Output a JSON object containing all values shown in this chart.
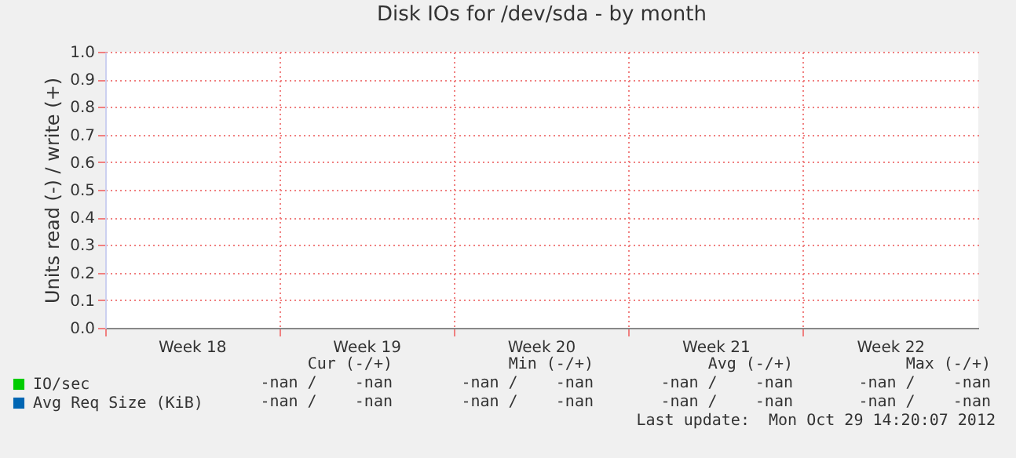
{
  "chart_data": {
    "type": "line",
    "title": "Disk IOs for /dev/sda - by month",
    "ylabel": "Units read (-) / write (+)",
    "categories": [
      "Week 18",
      "Week 19",
      "Week 20",
      "Week 21",
      "Week 22"
    ],
    "series": [
      {
        "name": "IO/sec",
        "color": "#00cc00",
        "values": [
          null,
          null,
          null,
          null,
          null
        ]
      },
      {
        "name": "Avg Req Size (KiB)",
        "color": "#0066b3",
        "values": [
          null,
          null,
          null,
          null,
          null
        ]
      }
    ],
    "ylim": [
      0,
      1
    ],
    "yticks": [
      {
        "value": 0,
        "label": "0.0"
      },
      {
        "value": 0.1,
        "label": "0.1"
      },
      {
        "value": 0.2,
        "label": "0.2"
      },
      {
        "value": 0.3,
        "label": "0.3"
      },
      {
        "value": 0.4,
        "label": "0.4"
      },
      {
        "value": 0.5,
        "label": "0.5"
      },
      {
        "value": 0.6,
        "label": "0.6"
      },
      {
        "value": 0.7,
        "label": "0.7"
      },
      {
        "value": 0.8,
        "label": "0.8"
      },
      {
        "value": 0.9,
        "label": "0.9"
      },
      {
        "value": 1,
        "label": "1.0"
      }
    ],
    "grid": true,
    "legend": "bottom left",
    "annotations": [
      "Cur (-/+)",
      "Min (-/+)",
      "Avg (-/+)",
      "Max (-/+)",
      "-nan /    -nan",
      "-nan /    -nan",
      "-nan /    -nan",
      "-nan /    -nan",
      "-nan /    -nan",
      "-nan /    -nan",
      "-nan /    -nan",
      "-nan /    -nan",
      "Last update:  Mon Oct 29 14:20:07 2012"
    ]
  }
}
